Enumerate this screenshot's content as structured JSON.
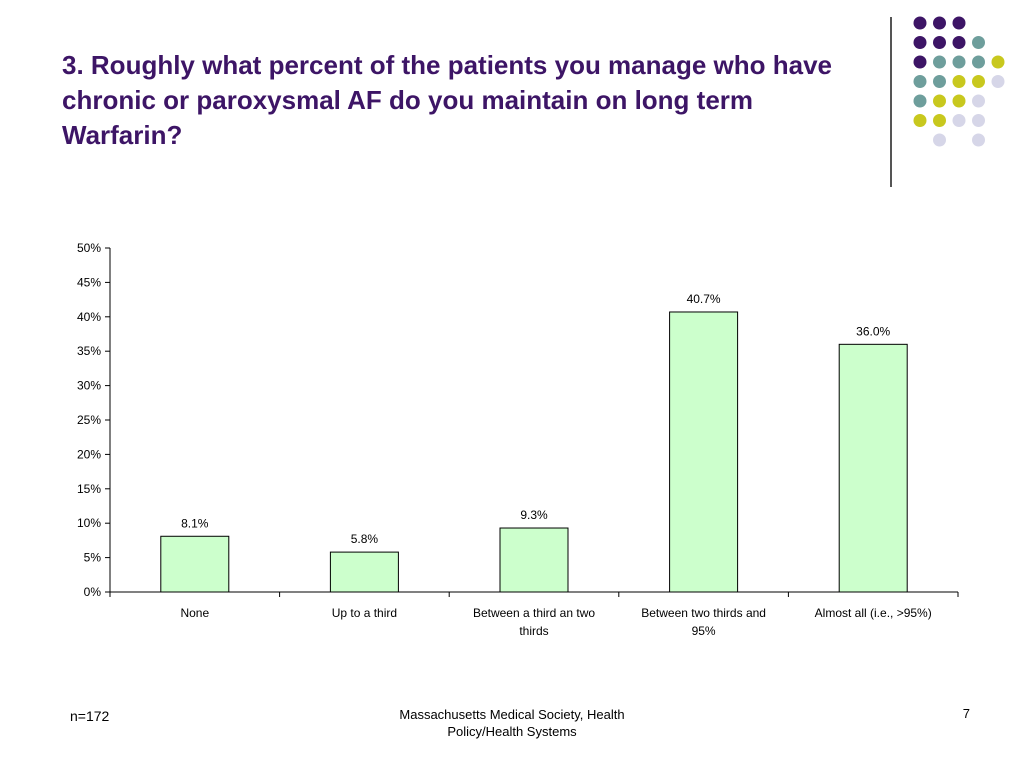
{
  "slide": {
    "title": "3. Roughly what percent of the patients you manage who have chronic or paroxysmal AF do you maintain on long term Warfarin?",
    "footer_n": "n=172",
    "footer_source": "Massachusetts Medical Society, Health Policy/Health Systems",
    "page_number": "7"
  },
  "colors": {
    "title": "#3d1566",
    "bar_fill": "#ccffcc",
    "bar_stroke": "#000000",
    "logo_purple": "#3d1566",
    "logo_teal": "#6e9e9c",
    "logo_olive": "#c8c81e",
    "logo_lavender": "#d6d6e8"
  },
  "logo": {
    "rows": [
      [
        "purple",
        "purple",
        "purple",
        null,
        null
      ],
      [
        "purple",
        "purple",
        "purple",
        "teal",
        null
      ],
      [
        "purple",
        "teal",
        "teal",
        "teal",
        "olive"
      ],
      [
        "teal",
        "teal",
        "olive",
        "olive",
        "lavender"
      ],
      [
        "teal",
        "olive",
        "olive",
        "lavender",
        null
      ],
      [
        "olive",
        "olive",
        "lavender",
        "lavender",
        null
      ],
      [
        null,
        "lavender",
        null,
        "lavender",
        null
      ]
    ]
  },
  "chart_data": {
    "type": "bar",
    "categories": [
      "None",
      "Up to a third",
      "Between a third an two thirds",
      "Between two thirds and 95%",
      "Almost all (i.e., >95%)"
    ],
    "category_lines": [
      [
        "None"
      ],
      [
        "Up to a third"
      ],
      [
        "Between a third an two",
        "thirds"
      ],
      [
        "Between two thirds and",
        "95%"
      ],
      [
        "Almost all (i.e., >95%)"
      ]
    ],
    "values": [
      8.1,
      5.8,
      9.3,
      40.7,
      36.0
    ],
    "data_labels": [
      "8.1%",
      "5.8%",
      "9.3%",
      "40.7%",
      "36.0%"
    ],
    "title": "",
    "xlabel": "",
    "ylabel": "",
    "ylim": [
      0,
      50
    ],
    "yticks": [
      0,
      5,
      10,
      15,
      20,
      25,
      30,
      35,
      40,
      45,
      50
    ],
    "ytick_labels": [
      "0%",
      "5%",
      "10%",
      "15%",
      "20%",
      "25%",
      "30%",
      "35%",
      "40%",
      "45%",
      "50%"
    ],
    "grid": false,
    "legend": "none"
  }
}
